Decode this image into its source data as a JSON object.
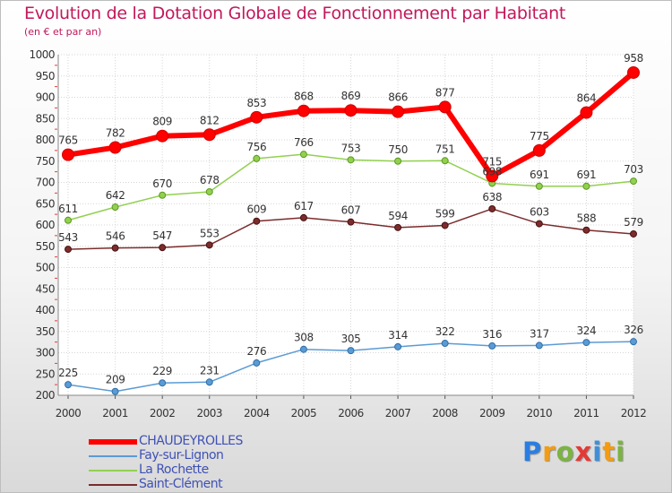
{
  "title": "Evolution de la Dotation Globale de Fonctionnement par Habitant",
  "subtitle": "(en € et par an)",
  "logo": {
    "letters": [
      "P",
      "r",
      "o",
      "x",
      "i",
      "t",
      "i"
    ],
    "colors": [
      "#2b7de0",
      "#f39c12",
      "#7cb342",
      "#e53935",
      "#3f8fd8",
      "#f39c12",
      "#7cb342"
    ]
  },
  "chart_data": {
    "type": "line",
    "x": [
      "2000",
      "2001",
      "2002",
      "2003",
      "2004",
      "2005",
      "2006",
      "2007",
      "2008",
      "2009",
      "2010",
      "2011",
      "2012"
    ],
    "ylim": [
      200,
      1000
    ],
    "yticks": [
      200,
      250,
      300,
      350,
      400,
      450,
      500,
      550,
      600,
      650,
      700,
      750,
      800,
      850,
      900,
      950,
      1000
    ],
    "grid": true,
    "legend": "bottom-left",
    "series": [
      {
        "name": "CHAUDEYROLLES",
        "color": "#ff0000",
        "values": [
          765,
          782,
          809,
          812,
          853,
          868,
          869,
          866,
          877,
          715,
          775,
          864,
          958
        ]
      },
      {
        "name": "Fay-sur-Lignon",
        "color": "#5b9bd5",
        "values": [
          225,
          209,
          229,
          231,
          276,
          308,
          305,
          314,
          322,
          316,
          317,
          324,
          326
        ]
      },
      {
        "name": "La Rochette",
        "color": "#92d050",
        "values": [
          611,
          642,
          670,
          678,
          756,
          766,
          753,
          750,
          751,
          698,
          691,
          691,
          703
        ]
      },
      {
        "name": "Saint-Clément",
        "color": "#7b2c2c",
        "values": [
          543,
          546,
          547,
          553,
          609,
          617,
          607,
          594,
          599,
          638,
          603,
          588,
          579
        ]
      }
    ]
  }
}
